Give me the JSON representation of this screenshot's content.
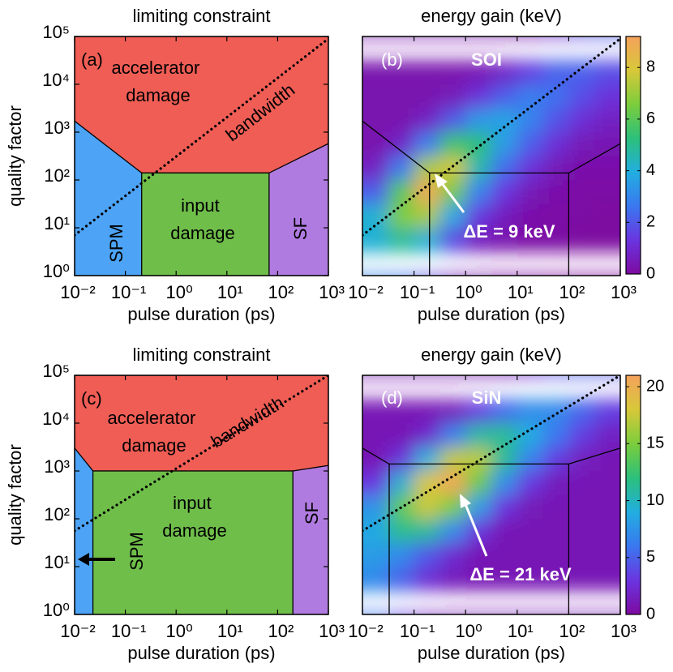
{
  "chart_data": [
    {
      "type": "region",
      "title": "limiting constraint",
      "xlabel": "pulse duration (ps)",
      "ylabel": "quality factor",
      "panel_label": "(a)",
      "log_x": true,
      "log_y": true,
      "xlim": [
        0.01,
        1000
      ],
      "ylim": [
        1,
        100000
      ],
      "xticks": [
        {
          "value": 0.01,
          "label": "10⁻²"
        },
        {
          "value": 0.1,
          "label": "10⁻¹"
        },
        {
          "value": 1,
          "label": "10⁰"
        },
        {
          "value": 10,
          "label": "10¹"
        },
        {
          "value": 100,
          "label": "10²"
        },
        {
          "value": 1000,
          "label": "10³"
        }
      ],
      "yticks": [
        {
          "value": 1,
          "label": "10⁰"
        },
        {
          "value": 10,
          "label": "10¹"
        },
        {
          "value": 100,
          "label": "10²"
        },
        {
          "value": 1000,
          "label": "10³"
        },
        {
          "value": 10000,
          "label": "10⁴"
        },
        {
          "value": 100000,
          "label": "10⁵"
        }
      ],
      "regions": [
        {
          "name": "accelerator damage",
          "color": "#ef5d55",
          "x": [
            0.01,
            1000,
            1000,
            68,
            0.21,
            0.01
          ],
          "y": [
            100000,
            100000,
            575,
            140,
            140,
            1700
          ]
        },
        {
          "name": "SPM",
          "color": "#4da3f5",
          "x": [
            0.01,
            0.21,
            0.21,
            0.01
          ],
          "y": [
            1700,
            140,
            1,
            1
          ]
        },
        {
          "name": "input damage",
          "color": "#6fbe4a",
          "x": [
            0.21,
            68,
            68,
            0.21
          ],
          "y": [
            140,
            140,
            1,
            1
          ]
        },
        {
          "name": "SF",
          "color": "#b07be0",
          "x": [
            68,
            1000,
            1000,
            68
          ],
          "y": [
            140,
            575,
            1,
            1
          ]
        }
      ],
      "bandwidth": {
        "name": "bandwidth",
        "x": [
          0.01,
          1000
        ],
        "y": [
          7,
          90000
        ]
      }
    },
    {
      "type": "heatmap",
      "title": "energy gain (keV)",
      "xlabel": "pulse duration (ps)",
      "panel_label": "(b)",
      "material": "SOI",
      "annotation": "ΔE = 9 keV",
      "log_x": true,
      "log_y": true,
      "xlim": [
        0.01,
        1000
      ],
      "ylim": [
        1,
        100000
      ],
      "xticks": [
        {
          "value": 0.01,
          "label": "10⁻²"
        },
        {
          "value": 0.1,
          "label": "10⁻¹"
        },
        {
          "value": 1,
          "label": "10⁰"
        },
        {
          "value": 10,
          "label": "10¹"
        },
        {
          "value": 100,
          "label": "10²"
        },
        {
          "value": 1000,
          "label": "10³"
        }
      ],
      "x": [
        0.018,
        0.056,
        0.18,
        0.56,
        1.8,
        5.6,
        18,
        56,
        180,
        560
      ],
      "y": [
        56000,
        18000,
        5600,
        1800,
        560,
        180,
        56,
        18,
        5.6,
        1.8
      ],
      "z": [
        [
          0.3,
          0.3,
          0.3,
          0.3,
          0.3,
          0.3,
          0.5,
          1.1,
          1.8,
          2.1
        ],
        [
          0.3,
          0.3,
          0.3,
          0.3,
          0.4,
          0.8,
          1.5,
          2.2,
          2.2,
          1.8
        ],
        [
          0.3,
          0.3,
          0.3,
          0.5,
          1.2,
          2.1,
          2.8,
          2.5,
          1.8,
          1.2
        ],
        [
          0.3,
          0.3,
          0.7,
          2.0,
          3.4,
          3.7,
          2.9,
          1.9,
          1.1,
          0.7
        ],
        [
          0.3,
          0.8,
          2.8,
          5.6,
          5.3,
          3.5,
          2.1,
          1.1,
          0.5,
          0.4
        ],
        [
          0.7,
          2.7,
          7.2,
          7.8,
          4.6,
          2.4,
          1.2,
          0.5,
          0.2,
          0.2
        ],
        [
          2.1,
          6.0,
          9.0,
          6.4,
          2.9,
          1.3,
          0.5,
          0.2,
          0.1,
          0.1
        ],
        [
          4.1,
          6.6,
          7.2,
          3.8,
          1.4,
          0.6,
          0.2,
          0.1,
          0.1,
          0
        ],
        [
          4.1,
          4.9,
          4.1,
          1.7,
          0.6,
          0.3,
          0.1,
          0.1,
          0,
          0
        ],
        [
          2.9,
          2.7,
          1.8,
          0.7,
          0.3,
          0.2,
          0.1,
          0,
          0,
          0
        ]
      ],
      "clim": [
        0,
        9.2
      ],
      "cticks": [
        0,
        2,
        4,
        6,
        8
      ],
      "colormap": [
        "#7d0aa0",
        "#6a35e0",
        "#3a78f0",
        "#22aee0",
        "#2cc07a",
        "#7ccd3c",
        "#d8c83a",
        "#f5a25c"
      ],
      "boundaries": [
        {
          "x": [
            0.01,
            0.2,
            100,
            1000
          ],
          "y": [
            1700,
            140,
            140,
            575
          ]
        },
        {
          "x": [
            0.2,
            0.2
          ],
          "y": [
            140,
            1
          ]
        },
        {
          "x": [
            100,
            100
          ],
          "y": [
            140,
            1
          ]
        }
      ],
      "bandwidth": {
        "x": [
          0.01,
          1000
        ],
        "y": [
          7,
          90000
        ]
      }
    },
    {
      "type": "region",
      "title": "limiting constraint",
      "xlabel": "pulse duration (ps)",
      "ylabel": "quality factor",
      "panel_label": "(c)",
      "log_x": true,
      "log_y": true,
      "xlim": [
        0.01,
        1000
      ],
      "ylim": [
        1,
        100000
      ],
      "xticks": [
        {
          "value": 0.01,
          "label": "10⁻²"
        },
        {
          "value": 0.1,
          "label": "10⁻¹"
        },
        {
          "value": 1,
          "label": "10⁰"
        },
        {
          "value": 10,
          "label": "10¹"
        },
        {
          "value": 100,
          "label": "10²"
        },
        {
          "value": 1000,
          "label": "10³"
        }
      ],
      "yticks": [
        {
          "value": 1,
          "label": "10⁰"
        },
        {
          "value": 10,
          "label": "10¹"
        },
        {
          "value": 100,
          "label": "10²"
        },
        {
          "value": 1000,
          "label": "10³"
        },
        {
          "value": 10000,
          "label": "10⁴"
        },
        {
          "value": 100000,
          "label": "10⁵"
        }
      ],
      "regions": [
        {
          "name": "accelerator damage",
          "color": "#ef5d55",
          "x": [
            0.01,
            1000,
            1000,
            200,
            0.023,
            0.01
          ],
          "y": [
            100000,
            100000,
            1300,
            1000,
            1000,
            3000
          ]
        },
        {
          "name": "SPM",
          "color": "#4da3f5",
          "x": [
            0.01,
            0.023,
            0.023,
            0.01
          ],
          "y": [
            3000,
            1000,
            1,
            1
          ]
        },
        {
          "name": "input damage",
          "color": "#6fbe4a",
          "x": [
            0.023,
            200,
            200,
            0.023
          ],
          "y": [
            1000,
            1000,
            1,
            1
          ]
        },
        {
          "name": "SF",
          "color": "#b07be0",
          "x": [
            200,
            1000,
            1000,
            200
          ],
          "y": [
            1000,
            1300,
            1,
            1
          ]
        }
      ],
      "bandwidth": {
        "name": "bandwidth",
        "x": [
          0.01,
          1000
        ],
        "y": [
          56,
          100000
        ]
      }
    },
    {
      "type": "heatmap",
      "title": "energy gain (keV)",
      "xlabel": "pulse duration (ps)",
      "panel_label": "(d)",
      "material": "SiN",
      "annotation": "ΔE = 21 keV",
      "log_x": true,
      "log_y": true,
      "xlim": [
        0.01,
        1000
      ],
      "ylim": [
        1,
        100000
      ],
      "xticks": [
        {
          "value": 0.01,
          "label": "10⁻²"
        },
        {
          "value": 0.1,
          "label": "10⁻¹"
        },
        {
          "value": 1,
          "label": "10⁰"
        },
        {
          "value": 10,
          "label": "10¹"
        },
        {
          "value": 100,
          "label": "10²"
        },
        {
          "value": 1000,
          "label": "10³"
        }
      ],
      "x": [
        0.018,
        0.056,
        0.18,
        0.56,
        1.8,
        5.6,
        18,
        56,
        180,
        560
      ],
      "y": [
        56000,
        18000,
        5600,
        1800,
        560,
        180,
        56,
        18,
        5.6,
        1.8
      ],
      "z": [
        [
          1,
          1,
          1,
          1,
          1,
          1.2,
          2.6,
          4.3,
          5,
          4.5
        ],
        [
          1,
          1,
          1,
          1.2,
          3.1,
          5.4,
          7.1,
          7,
          5.2,
          3.4
        ],
        [
          1,
          1,
          2.1,
          6.5,
          10.7,
          11.2,
          8.9,
          6,
          3.4,
          1.7
        ],
        [
          1,
          2.8,
          9.1,
          17.2,
          17,
          11.2,
          6.6,
          3.4,
          1.5,
          1
        ],
        [
          3,
          9.4,
          18,
          20.6,
          14.3,
          7.2,
          3.2,
          1.3,
          1,
          1
        ],
        [
          7.5,
          14,
          17.5,
          14.9,
          8,
          3,
          1.1,
          1,
          1,
          1
        ],
        [
          8.8,
          11.5,
          11,
          7.1,
          2.9,
          1,
          1,
          1,
          1,
          1
        ],
        [
          8,
          7,
          4.6,
          2.3,
          1,
          1,
          1,
          1,
          1,
          1
        ],
        [
          7,
          5,
          2.5,
          1.3,
          1,
          1,
          1,
          1,
          1,
          1
        ],
        [
          6,
          3.5,
          1.5,
          1,
          1,
          1,
          1,
          1,
          1,
          1
        ]
      ],
      "clim": [
        0,
        21
      ],
      "cticks": [
        0,
        5,
        10,
        15,
        20
      ],
      "colormap": [
        "#7d0aa0",
        "#6a35e0",
        "#3a78f0",
        "#22aee0",
        "#2cc07a",
        "#7ccd3c",
        "#d8c83a",
        "#f5a25c"
      ],
      "boundaries": [
        {
          "x": [
            0.01,
            0.033,
            100,
            1000
          ],
          "y": [
            3000,
            1400,
            1400,
            3000
          ]
        },
        {
          "x": [
            0.033,
            0.033
          ],
          "y": [
            1400,
            1
          ]
        },
        {
          "x": [
            100,
            100
          ],
          "y": [
            1400,
            1
          ]
        }
      ],
      "bandwidth": {
        "x": [
          0.01,
          1000
        ],
        "y": [
          56,
          100000
        ]
      }
    }
  ]
}
